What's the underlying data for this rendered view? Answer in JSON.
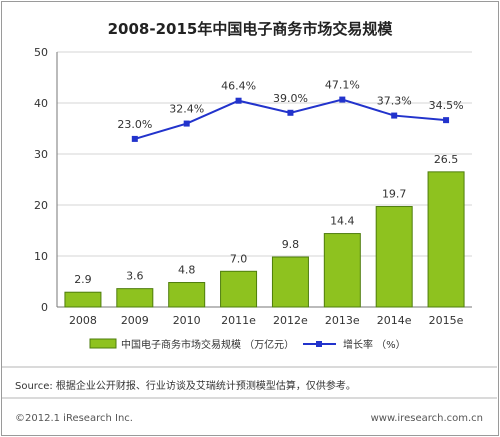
{
  "chart_data": {
    "type": "bar",
    "title": "2008-2015年中国电子商务市场交易规模",
    "categories": [
      "2008",
      "2009",
      "2010",
      "2011e",
      "2012e",
      "2013e",
      "2014e",
      "2015e"
    ],
    "series": [
      {
        "name": "中国电子商务市场交易规模 （万亿元）",
        "type": "bar",
        "values": [
          2.9,
          3.6,
          4.8,
          7.0,
          9.8,
          14.4,
          19.7,
          26.5
        ],
        "value_labels": [
          "2.9",
          "3.6",
          "4.8",
          "7.0",
          "9.8",
          "14.4",
          "19.7",
          "26.5"
        ]
      },
      {
        "name": "增长率 （%）",
        "type": "line",
        "values": [
          null,
          23.0,
          32.4,
          46.4,
          39.0,
          47.1,
          37.3,
          34.5
        ],
        "value_labels": [
          "",
          "23.0%",
          "32.4%",
          "46.4%",
          "39.0%",
          "47.1%",
          "37.3%",
          "34.5%"
        ]
      }
    ],
    "ylim": [
      0,
      50
    ],
    "yticks": [
      0,
      10,
      20,
      30,
      40,
      50
    ],
    "grid": true,
    "legend": "bottom",
    "colors": {
      "bar": "#8ec21f",
      "bar_edge": "#4e7d0c",
      "line": "#2233cc",
      "grid": "#d6d6d6",
      "axis": "#777777"
    }
  },
  "footer": {
    "source": "Source: 根据企业公开财报、行业访谈及艾瑞统计预测模型估算，仅供参考。",
    "copyright": "©2012.1 iResearch Inc.",
    "website": "www.iresearch.com.cn"
  }
}
